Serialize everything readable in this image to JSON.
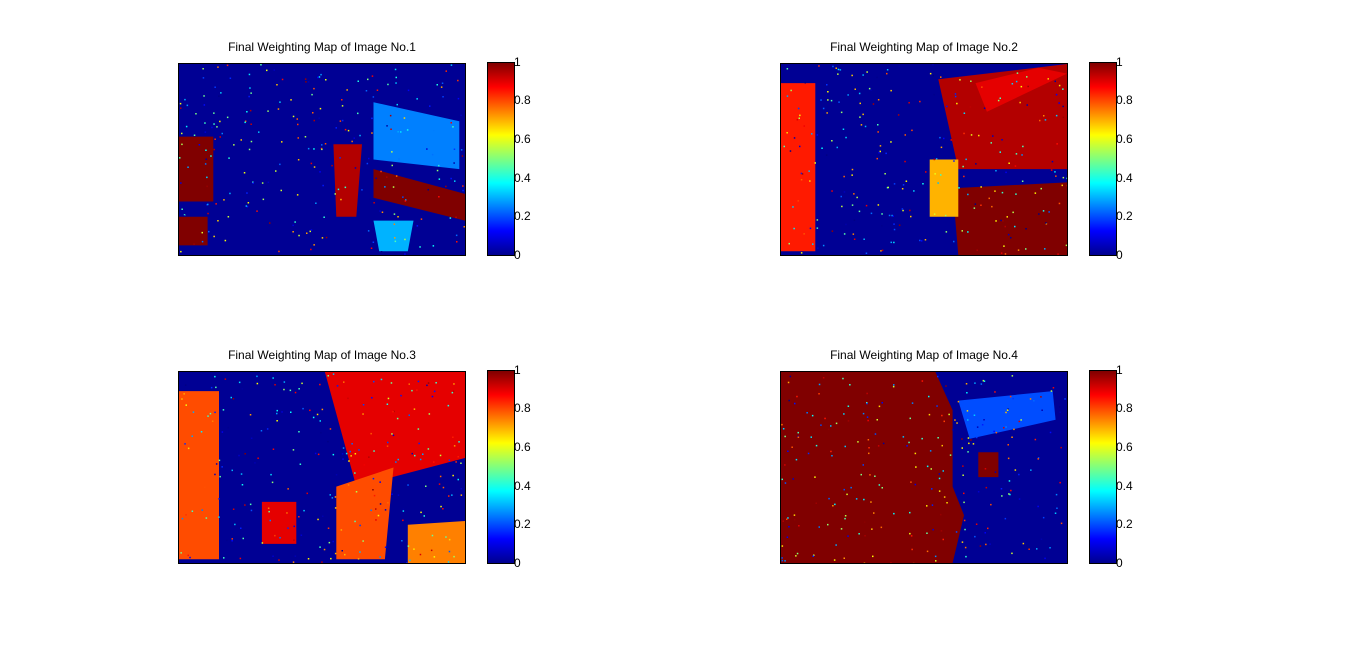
{
  "chart_data": [
    {
      "type": "heatmap",
      "title": "Final Weighting Map of Image No.1",
      "colorbar": {
        "ticks": [
          "0",
          "0.2",
          "0.4",
          "0.6",
          "0.8",
          "1"
        ],
        "range": [
          0,
          1
        ],
        "colormap": "jet"
      },
      "xlabel": "",
      "ylabel": "",
      "high_weight_regions": [
        {
          "shape": "poly",
          "points": [
            [
              0.0,
              0.38
            ],
            [
              0.12,
              0.38
            ],
            [
              0.12,
              0.72
            ],
            [
              0.0,
              0.72
            ]
          ],
          "value": 1.0
        },
        {
          "shape": "poly",
          "points": [
            [
              0.0,
              0.8
            ],
            [
              0.1,
              0.8
            ],
            [
              0.1,
              0.95
            ],
            [
              0.0,
              0.95
            ]
          ],
          "value": 1.0
        },
        {
          "shape": "poly",
          "points": [
            [
              0.54,
              0.42
            ],
            [
              0.64,
              0.42
            ],
            [
              0.62,
              0.8
            ],
            [
              0.55,
              0.8
            ]
          ],
          "value": 0.95
        },
        {
          "shape": "poly",
          "points": [
            [
              0.68,
              0.55
            ],
            [
              1.0,
              0.68
            ],
            [
              1.0,
              0.82
            ],
            [
              0.68,
              0.7
            ]
          ],
          "value": 1.0
        },
        {
          "shape": "poly",
          "points": [
            [
              0.68,
              0.2
            ],
            [
              0.98,
              0.3
            ],
            [
              0.98,
              0.55
            ],
            [
              0.68,
              0.5
            ]
          ],
          "value": 0.25
        },
        {
          "shape": "poly",
          "points": [
            [
              0.68,
              0.82
            ],
            [
              0.82,
              0.82
            ],
            [
              0.8,
              0.98
            ],
            [
              0.7,
              0.98
            ]
          ],
          "value": 0.3
        }
      ]
    },
    {
      "type": "heatmap",
      "title": "Final Weighting Map of Image No.2",
      "colorbar": {
        "ticks": [
          "0",
          "0.2",
          "0.4",
          "0.6",
          "0.8",
          "1"
        ],
        "range": [
          0,
          1
        ],
        "colormap": "jet"
      },
      "xlabel": "",
      "ylabel": "",
      "high_weight_regions": [
        {
          "shape": "poly",
          "points": [
            [
              0.0,
              0.1
            ],
            [
              0.12,
              0.1
            ],
            [
              0.12,
              0.98
            ],
            [
              0.0,
              0.98
            ]
          ],
          "value": 0.85
        },
        {
          "shape": "poly",
          "points": [
            [
              0.55,
              0.08
            ],
            [
              1.0,
              0.0
            ],
            [
              1.0,
              0.55
            ],
            [
              0.62,
              0.55
            ]
          ],
          "value": 0.95
        },
        {
          "shape": "poly",
          "points": [
            [
              0.6,
              0.65
            ],
            [
              1.0,
              0.62
            ],
            [
              1.0,
              1.0
            ],
            [
              0.62,
              1.0
            ]
          ],
          "value": 1.0
        },
        {
          "shape": "poly",
          "points": [
            [
              0.52,
              0.5
            ],
            [
              0.62,
              0.5
            ],
            [
              0.62,
              0.8
            ],
            [
              0.52,
              0.8
            ]
          ],
          "value": 0.7
        },
        {
          "shape": "poly",
          "points": [
            [
              0.68,
              0.1
            ],
            [
              0.9,
              0.02
            ],
            [
              1.0,
              0.05
            ],
            [
              0.72,
              0.25
            ]
          ],
          "value": 0.9
        }
      ]
    },
    {
      "type": "heatmap",
      "title": "Final Weighting Map of Image No.3",
      "colorbar": {
        "ticks": [
          "0",
          "0.2",
          "0.4",
          "0.6",
          "0.8",
          "1"
        ],
        "range": [
          0,
          1
        ],
        "colormap": "jet"
      },
      "xlabel": "",
      "ylabel": "",
      "high_weight_regions": [
        {
          "shape": "poly",
          "points": [
            [
              0.0,
              0.1
            ],
            [
              0.14,
              0.1
            ],
            [
              0.14,
              0.98
            ],
            [
              0.0,
              0.98
            ]
          ],
          "value": 0.8
        },
        {
          "shape": "poly",
          "points": [
            [
              0.51,
              0.0
            ],
            [
              1.0,
              0.0
            ],
            [
              1.0,
              0.45
            ],
            [
              0.62,
              0.6
            ]
          ],
          "value": 0.9
        },
        {
          "shape": "poly",
          "points": [
            [
              0.55,
              0.6
            ],
            [
              0.75,
              0.5
            ],
            [
              0.72,
              0.98
            ],
            [
              0.55,
              0.98
            ]
          ],
          "value": 0.8
        },
        {
          "shape": "poly",
          "points": [
            [
              0.8,
              0.8
            ],
            [
              1.0,
              0.78
            ],
            [
              1.0,
              1.0
            ],
            [
              0.8,
              1.0
            ]
          ],
          "value": 0.75
        },
        {
          "shape": "poly",
          "points": [
            [
              0.29,
              0.68
            ],
            [
              0.41,
              0.68
            ],
            [
              0.41,
              0.9
            ],
            [
              0.29,
              0.9
            ]
          ],
          "value": 0.9
        }
      ]
    },
    {
      "type": "heatmap",
      "title": "Final Weighting Map of Image No.4",
      "colorbar": {
        "ticks": [
          "0",
          "0.2",
          "0.4",
          "0.6",
          "0.8",
          "1"
        ],
        "range": [
          0,
          1
        ],
        "colormap": "jet"
      },
      "xlabel": "",
      "ylabel": "",
      "high_weight_regions": [
        {
          "shape": "poly",
          "points": [
            [
              0.0,
              0.0
            ],
            [
              0.54,
              0.0
            ],
            [
              0.6,
              0.2
            ],
            [
              0.6,
              0.6
            ],
            [
              0.64,
              0.75
            ],
            [
              0.6,
              1.0
            ],
            [
              0.0,
              1.0
            ]
          ],
          "value": 1.0
        },
        {
          "shape": "poly",
          "points": [
            [
              0.69,
              0.42
            ],
            [
              0.76,
              0.42
            ],
            [
              0.76,
              0.55
            ],
            [
              0.69,
              0.55
            ]
          ],
          "value": 1.0
        },
        {
          "shape": "poly",
          "points": [
            [
              0.62,
              0.15
            ],
            [
              0.95,
              0.1
            ],
            [
              0.96,
              0.25
            ],
            [
              0.66,
              0.35
            ]
          ],
          "value": 0.2
        }
      ]
    }
  ]
}
